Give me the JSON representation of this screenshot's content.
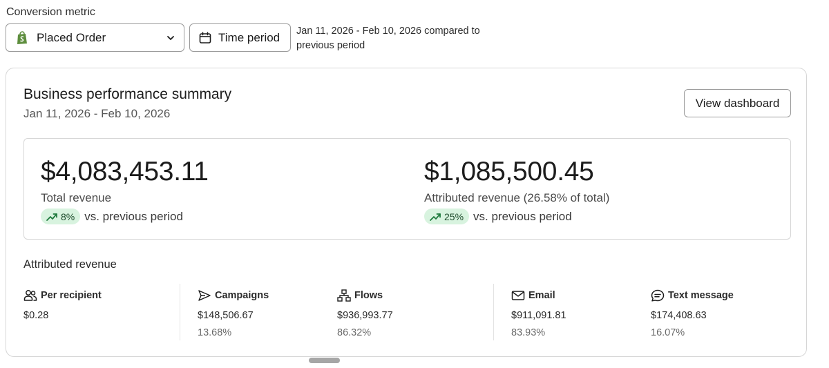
{
  "conversion": {
    "label": "Conversion metric",
    "selected": "Placed Order",
    "time_button": "Time period",
    "range_text": "Jan 11, 2026 - Feb 10, 2026 compared to previous period"
  },
  "summary": {
    "title": "Business performance summary",
    "date_range": "Jan 11, 2026 - Feb 10, 2026",
    "view_button": "View dashboard",
    "total": {
      "value": "$4,083,453.11",
      "label": "Total revenue",
      "change": "8%",
      "comparison": "vs. previous period"
    },
    "attributed": {
      "value": "$1,085,500.45",
      "label": "Attributed revenue (26.58% of total)",
      "change": "25%",
      "comparison": "vs. previous period"
    }
  },
  "attributed_revenue": {
    "title": "Attributed revenue",
    "stats": [
      {
        "label": "Per recipient",
        "value": "$0.28",
        "percent": "",
        "icon": "people-icon"
      },
      {
        "label": "Campaigns",
        "value": "$148,506.67",
        "percent": "13.68%",
        "icon": "send-icon"
      },
      {
        "label": "Flows",
        "value": "$936,993.77",
        "percent": "86.32%",
        "icon": "flow-icon"
      },
      {
        "label": "Email",
        "value": "$911,091.81",
        "percent": "83.93%",
        "icon": "mail-icon"
      },
      {
        "label": "Text message",
        "value": "$174,408.63",
        "percent": "16.07%",
        "icon": "message-icon"
      }
    ]
  },
  "colors": {
    "pill_bg": "#d8f3df",
    "trend_green": "#1e7a3c",
    "shopify_green": "#5e8e3e"
  }
}
